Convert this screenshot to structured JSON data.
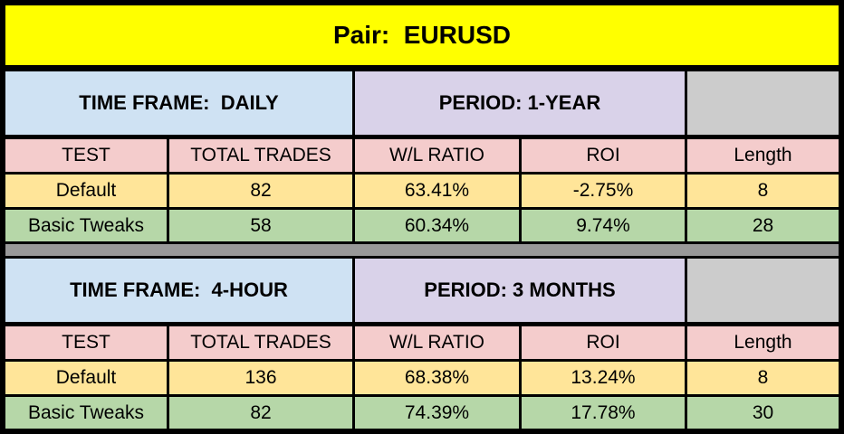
{
  "title": "Pair:  EURUSD",
  "sections": [
    {
      "time_frame": "TIME FRAME:  DAILY",
      "period": "PERIOD: 1-YEAR",
      "columns": [
        "TEST",
        "TOTAL TRADES",
        "W/L RATIO",
        "ROI",
        "Length"
      ],
      "rows": [
        {
          "test": "Default",
          "total_trades": "82",
          "wl_ratio": "63.41%",
          "roi": "-2.75%",
          "length": "8"
        },
        {
          "test": "Basic Tweaks",
          "total_trades": "58",
          "wl_ratio": "60.34%",
          "roi": "9.74%",
          "length": "28"
        }
      ]
    },
    {
      "time_frame": "TIME FRAME:  4-HOUR",
      "period": "PERIOD: 3 MONTHS",
      "columns": [
        "TEST",
        "TOTAL TRADES",
        "W/L RATIO",
        "ROI",
        "Length"
      ],
      "rows": [
        {
          "test": "Default",
          "total_trades": "136",
          "wl_ratio": "68.38%",
          "roi": "13.24%",
          "length": "8"
        },
        {
          "test": "Basic Tweaks",
          "total_trades": "82",
          "wl_ratio": "74.39%",
          "roi": "17.78%",
          "length": "30"
        }
      ]
    }
  ],
  "colors": {
    "title_bg": "#FFFF00",
    "time_frame_bg": "#CFE2F3",
    "period_bg": "#D9D2E9",
    "empty_cell_bg": "#CCCCCC",
    "header_row_bg": "#F4CCCC",
    "default_row_bg": "#FFE599",
    "basic_tweaks_row_bg": "#B6D7A8",
    "separator_bg": "#999999",
    "border": "#000000"
  }
}
